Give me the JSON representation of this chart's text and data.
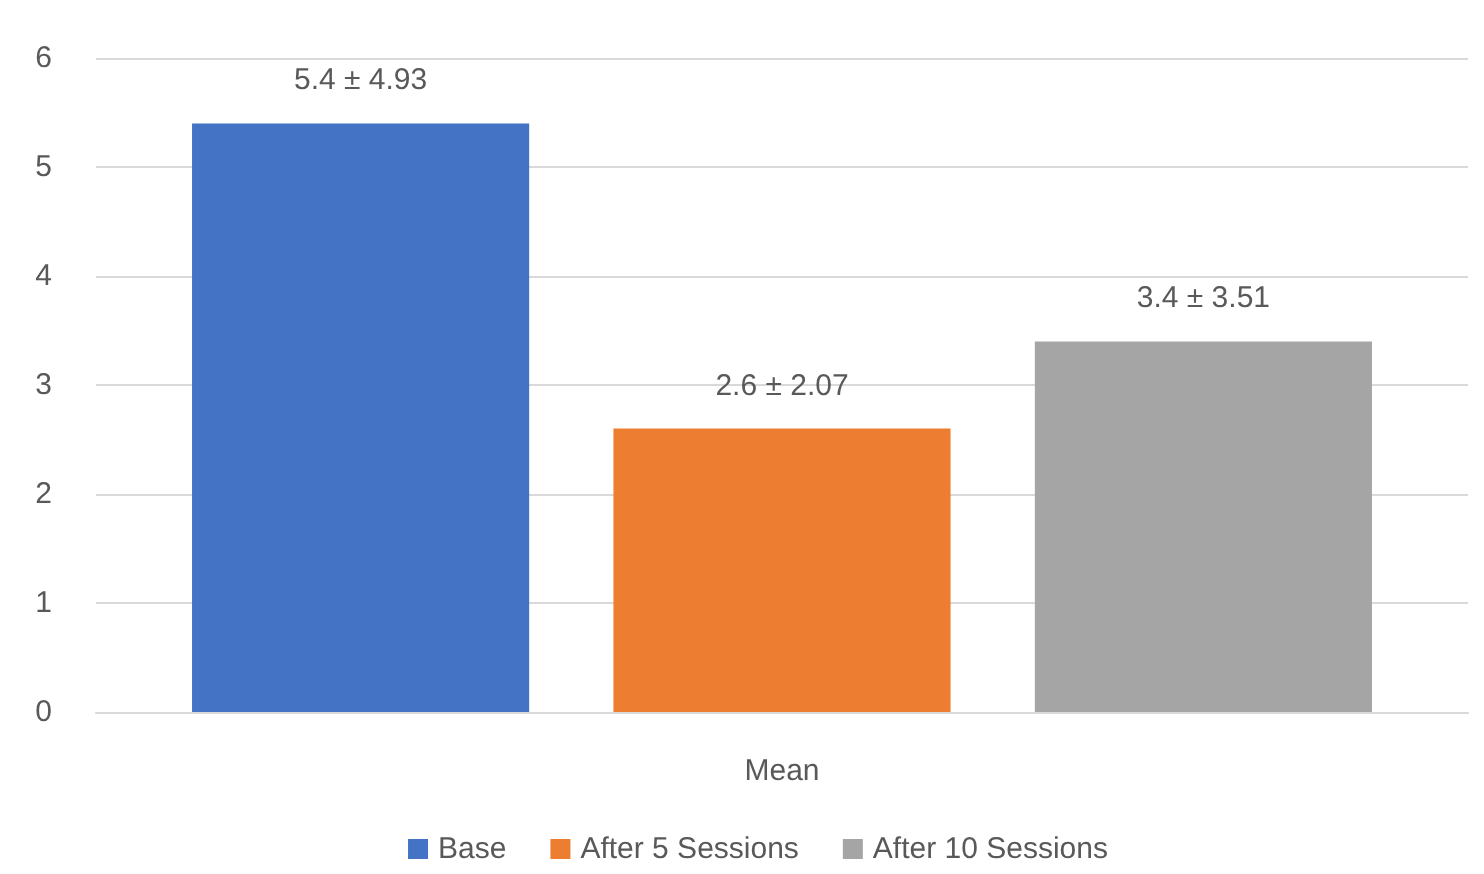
{
  "chart_data": {
    "type": "bar",
    "categories": [
      "Mean"
    ],
    "series": [
      {
        "name": "Base",
        "color": "#4472c4",
        "values": [
          5.4
        ],
        "value_labels": [
          "5.4 ± 4.93"
        ]
      },
      {
        "name": "After 5 Sessions",
        "color": "#ed7d31",
        "values": [
          2.6
        ],
        "value_labels": [
          "2.6 ± 2.07"
        ]
      },
      {
        "name": "After 10 Sessions",
        "color": "#a5a5a5",
        "values": [
          3.4
        ],
        "value_labels": [
          "3.4 ± 3.51"
        ]
      }
    ],
    "ylim": [
      0,
      6
    ],
    "yticks": [
      0,
      1,
      2,
      3,
      4,
      5,
      6
    ],
    "grid": "y",
    "legend": "bottom"
  }
}
